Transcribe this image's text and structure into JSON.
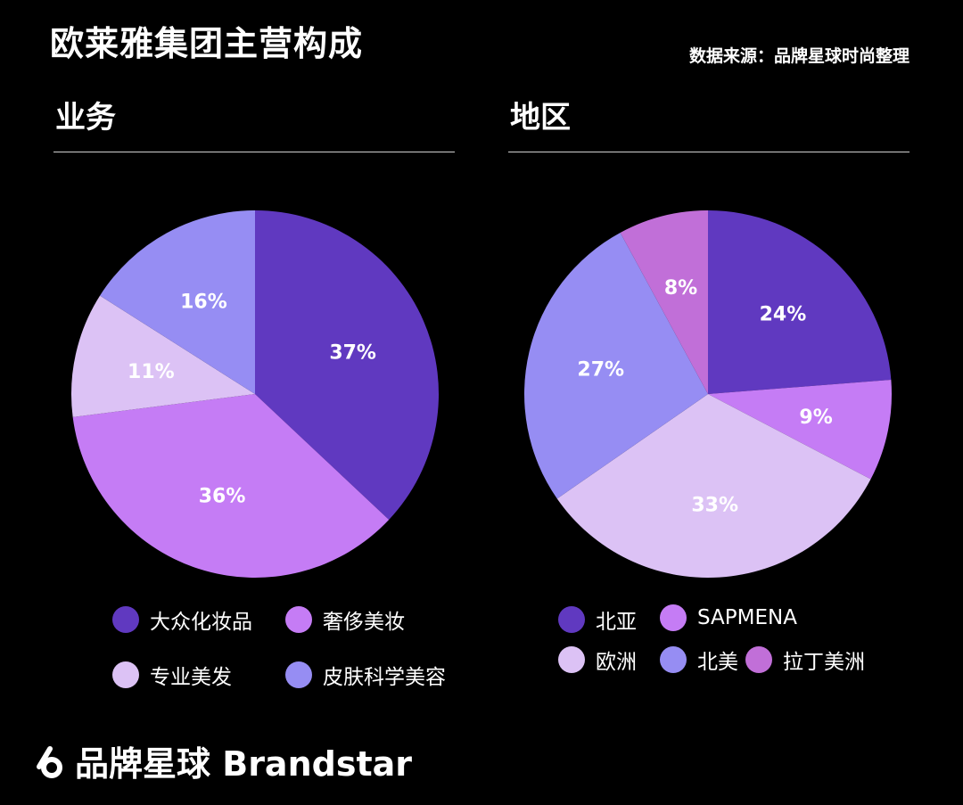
{
  "title": "欧莱雅集团主营构成",
  "source": "数据来源：品牌星球时尚整理",
  "brand": {
    "text": "品牌星球 Brandstar",
    "icon": "brandstar-logo-icon"
  },
  "chart_data": [
    {
      "type": "pie",
      "title": "业务",
      "categories": [
        "大众化妆品",
        "奢侈美妆",
        "专业美发",
        "皮肤科学美容"
      ],
      "values": [
        37,
        36,
        11,
        16
      ],
      "labels": [
        "37%",
        "36%",
        "11%",
        "16%"
      ],
      "colors": [
        "#6039c0",
        "#c57cf5",
        "#dcc2f5",
        "#968df3"
      ],
      "legend_placement": "bottom"
    },
    {
      "type": "pie",
      "title": "地区",
      "categories": [
        "北亚",
        "SAPMENA",
        "欧洲",
        "北美",
        "拉丁美洲"
      ],
      "values": [
        24,
        9,
        33,
        27,
        8
      ],
      "labels": [
        "24%",
        "9%",
        "33%",
        "27%",
        "8%"
      ],
      "colors": [
        "#6039c0",
        "#c57cf5",
        "#dcc2f5",
        "#968df3",
        "#c16fd8"
      ],
      "legend_placement": "bottom"
    }
  ]
}
